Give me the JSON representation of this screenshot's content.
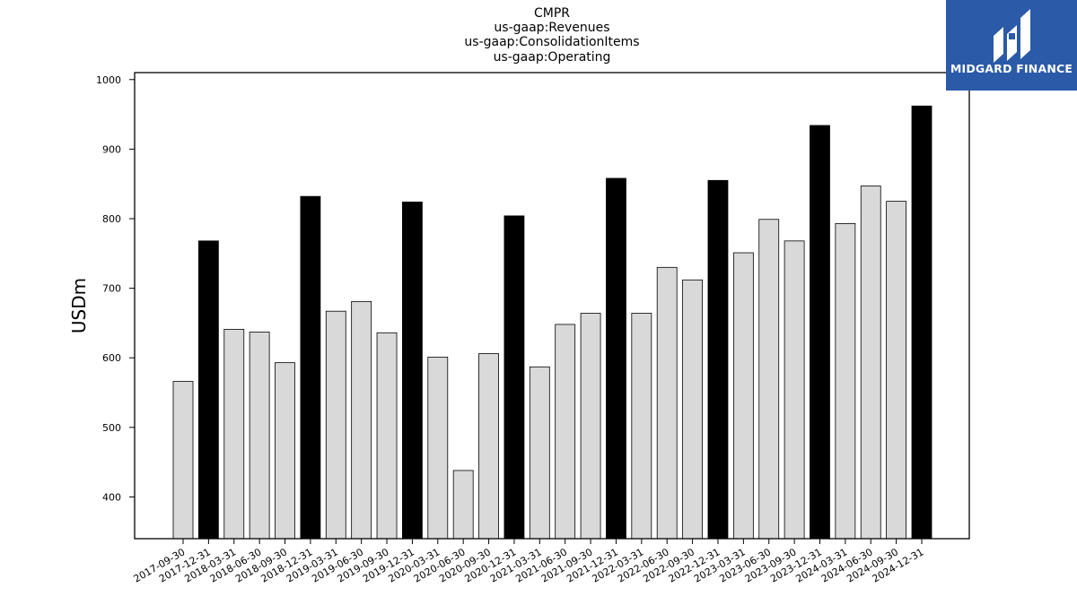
{
  "chart_data": {
    "type": "bar",
    "title_lines": [
      "CMPR",
      "us-gaap:Revenues",
      "us-gaap:ConsolidationItems",
      "us-gaap:Operating"
    ],
    "xlabel": "",
    "ylabel": "USDm",
    "ylim": [
      340,
      1010
    ],
    "yticks": [
      400,
      500,
      600,
      700,
      800,
      900,
      1000
    ],
    "grid": false,
    "categories": [
      "2017-09-30",
      "2017-12-31",
      "2018-03-31",
      "2018-06-30",
      "2018-09-30",
      "2018-12-31",
      "2019-03-31",
      "2019-06-30",
      "2019-09-30",
      "2019-12-31",
      "2020-03-31",
      "2020-06-30",
      "2020-09-30",
      "2020-12-31",
      "2021-03-31",
      "2021-06-30",
      "2021-09-30",
      "2021-12-31",
      "2022-03-31",
      "2022-06-30",
      "2022-09-30",
      "2022-12-31",
      "2023-03-31",
      "2023-06-30",
      "2023-09-30",
      "2023-12-31",
      "2024-03-31",
      "2024-06-30",
      "2024-09-30",
      "2024-12-31"
    ],
    "values": [
      566,
      768,
      641,
      637,
      593,
      832,
      667,
      681,
      636,
      824,
      601,
      438,
      606,
      804,
      587,
      648,
      664,
      858,
      664,
      730,
      712,
      855,
      751,
      799,
      768,
      934,
      793,
      847,
      825,
      962
    ],
    "highlight": [
      false,
      true,
      false,
      false,
      false,
      true,
      false,
      false,
      false,
      true,
      false,
      false,
      false,
      true,
      false,
      false,
      false,
      true,
      false,
      false,
      false,
      true,
      false,
      false,
      false,
      true,
      false,
      false,
      false,
      true
    ],
    "colors": {
      "bar": "#d9d9d9",
      "bar_highlight": "#000000",
      "bar_edge": "#000000",
      "axis": "#000000"
    }
  },
  "logo": {
    "text": "MIDGARD FINANCE",
    "background": "#2b5aa8",
    "icon": "midgard-logo-mark"
  }
}
